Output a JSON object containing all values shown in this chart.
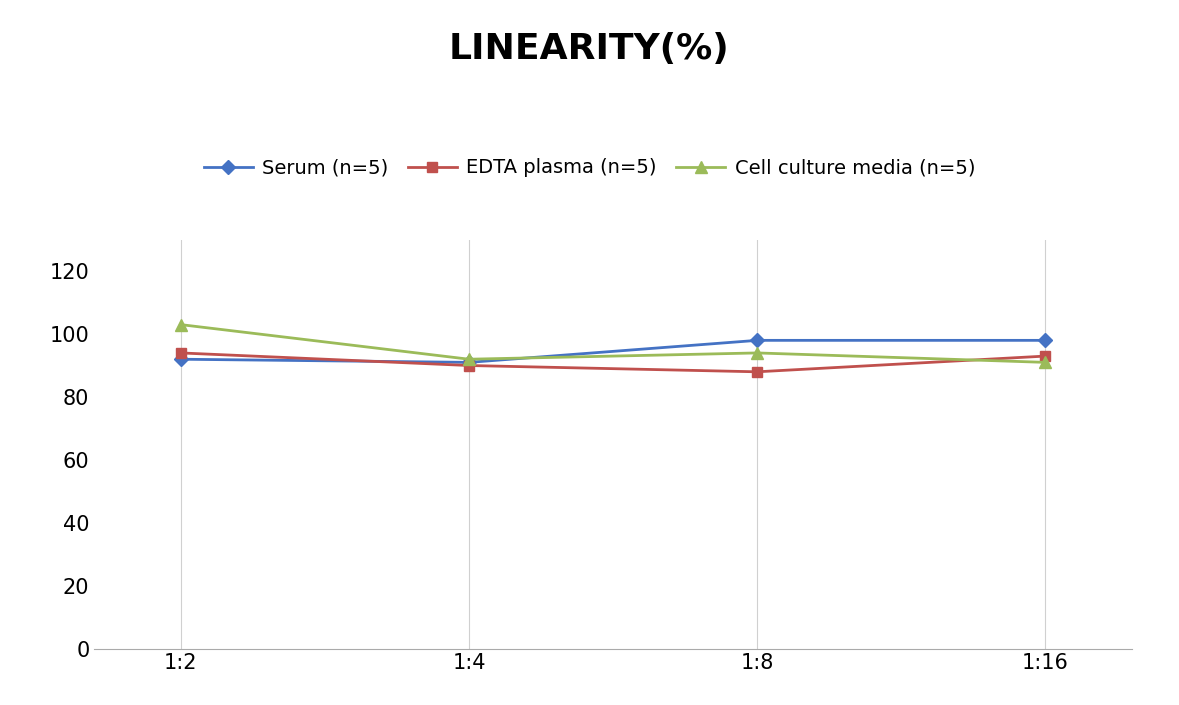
{
  "title": "LINEARITY(%)",
  "x_labels": [
    "1:2",
    "1:4",
    "1:8",
    "1:16"
  ],
  "series": [
    {
      "name": "Serum (n=5)",
      "values": [
        92,
        91,
        98,
        98
      ],
      "color": "#4472C4",
      "marker": "D",
      "markersize": 7
    },
    {
      "name": "EDTA plasma (n=5)",
      "values": [
        94,
        90,
        88,
        93
      ],
      "color": "#C0504D",
      "marker": "s",
      "markersize": 7
    },
    {
      "name": "Cell culture media (n=5)",
      "values": [
        103,
        92,
        94,
        91
      ],
      "color": "#9BBB59",
      "marker": "^",
      "markersize": 8
    }
  ],
  "ylim": [
    0,
    130
  ],
  "yticks": [
    0,
    20,
    40,
    60,
    80,
    100,
    120
  ],
  "title_fontsize": 26,
  "tick_fontsize": 15,
  "legend_fontsize": 14,
  "background_color": "#ffffff",
  "grid_color": "#d0d0d0",
  "linewidth": 2.0
}
